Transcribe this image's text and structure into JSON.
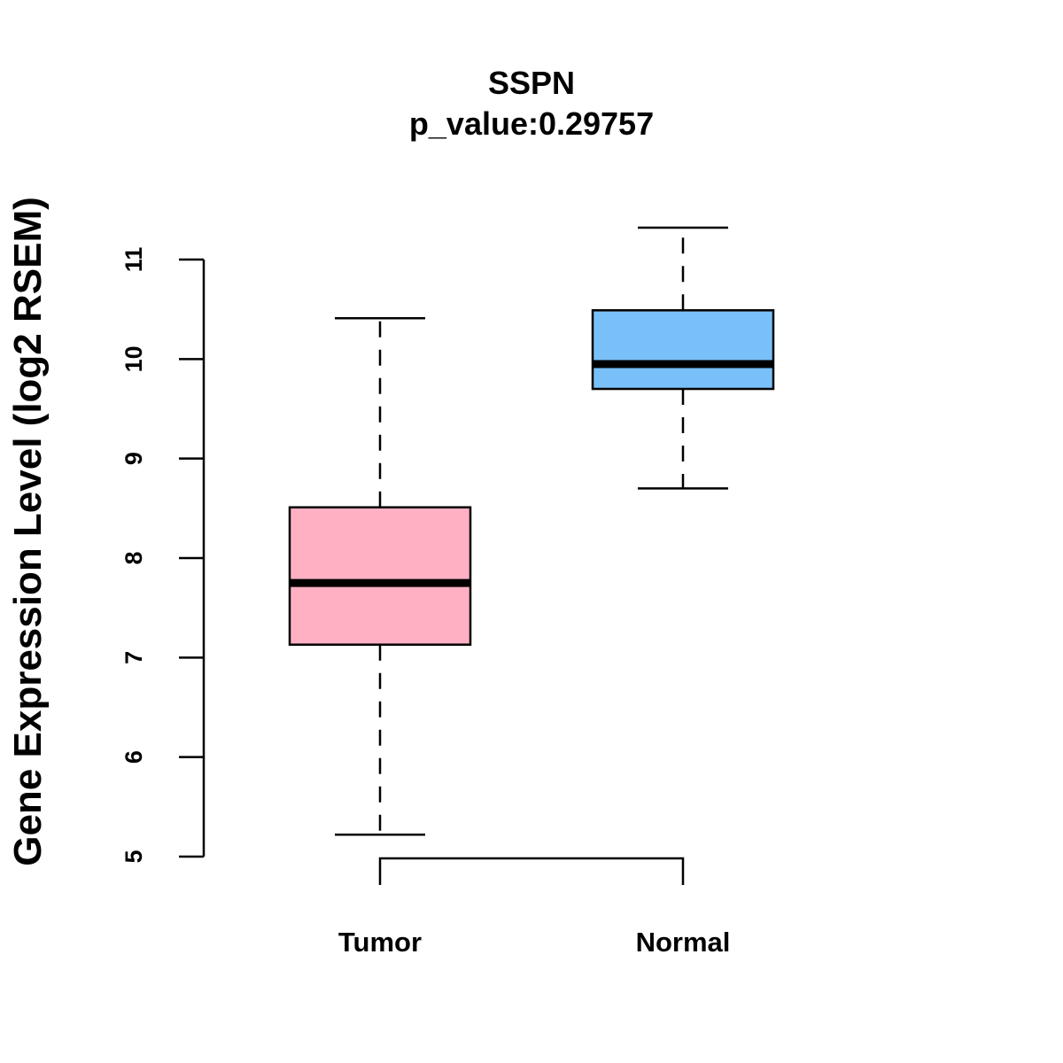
{
  "chart_data": {
    "type": "box",
    "title": "SSPN",
    "subtitle": "p_value:0.29757",
    "xlabel": "",
    "ylabel": "Gene Expression Level (log2 RSEM)",
    "ylim": [
      5,
      11
    ],
    "yticks": [
      5,
      6,
      7,
      8,
      9,
      10,
      11
    ],
    "grid": false,
    "categories": [
      "Tumor",
      "Normal"
    ],
    "boxes": [
      {
        "category": "Tumor",
        "whisker_low": 5.22,
        "q1": 7.13,
        "median": 7.75,
        "q3": 8.51,
        "whisker_high": 10.41,
        "color": "#FFB1C3"
      },
      {
        "category": "Normal",
        "whisker_low": 8.7,
        "q1": 9.7,
        "median": 9.95,
        "q3": 10.49,
        "whisker_high": 11.32,
        "color": "#79C0F8"
      }
    ],
    "comparison_bracket": [
      "Tumor",
      "Normal"
    ]
  }
}
